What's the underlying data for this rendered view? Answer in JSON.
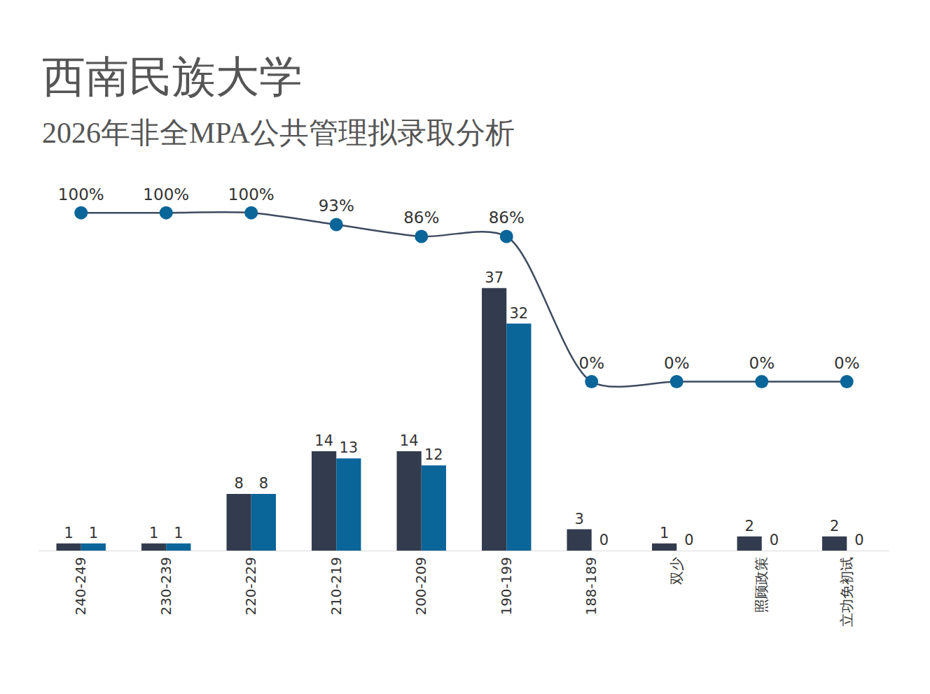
{
  "chart_data": {
    "type": "bar",
    "title": "西南民族大学",
    "subtitle": "2026年非全MPA公共管理拟录取分析",
    "categories": [
      "240-249",
      "230-239",
      "220-229",
      "210-219",
      "200-209",
      "190-199",
      "188-189",
      "双少",
      "照顾政策",
      "立功免初试"
    ],
    "series": [
      {
        "type": "bar",
        "color": "#333c4e",
        "values": [
          1,
          1,
          8,
          14,
          14,
          37,
          3,
          1,
          2,
          2
        ]
      },
      {
        "type": "bar",
        "color": "#0a6599",
        "values": [
          1,
          1,
          8,
          13,
          12,
          32,
          0,
          0,
          0,
          0
        ]
      },
      {
        "type": "line",
        "axis": "y2",
        "color": "#3d4a5f",
        "marker": "circle",
        "line_style": "solid",
        "values": [
          100,
          100,
          100,
          93,
          86,
          86,
          0,
          0,
          0,
          0
        ],
        "value_labels": [
          "100%",
          "100%",
          "100%",
          "93%",
          "86%",
          "86%",
          "0%",
          "0%",
          "0%",
          "0%"
        ]
      }
    ],
    "ylim": [
      0,
      50
    ],
    "y2lim": [
      -100,
      110
    ],
    "data_labels": true,
    "tick_labels": "x",
    "grid": false
  }
}
